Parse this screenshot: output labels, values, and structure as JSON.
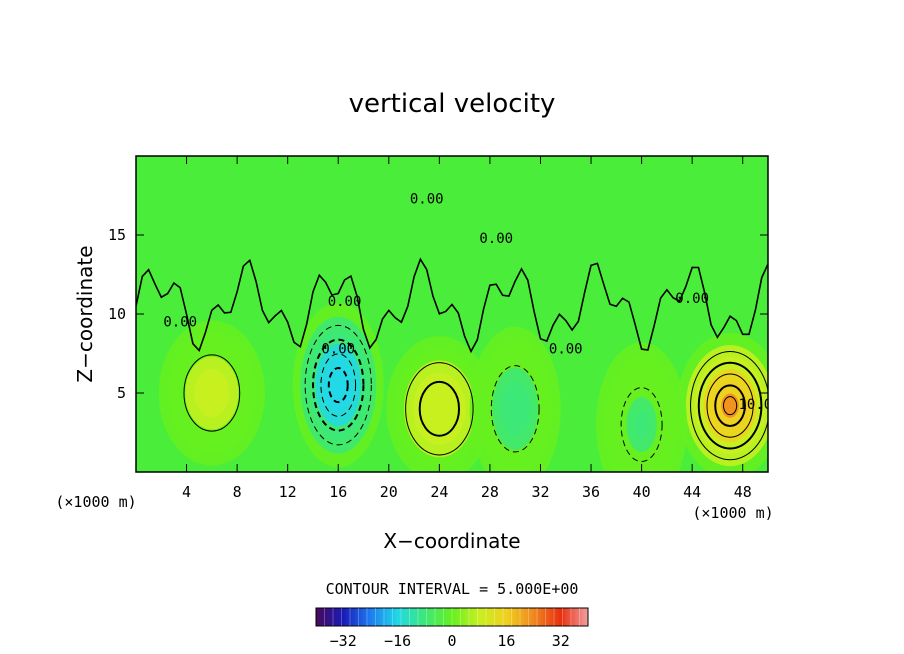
{
  "chart_data": {
    "type": "heatmap",
    "title": "vertical velocity",
    "xlabel": "X−coordinate",
    "ylabel": "Z−coordinate",
    "x_unit_label": "(×1000 m)",
    "x_unit_label_right": "(×1000 m)",
    "xlim": [
      0,
      50
    ],
    "ylim": [
      0,
      20
    ],
    "x_ticks": [
      4,
      8,
      12,
      16,
      20,
      24,
      28,
      32,
      36,
      40,
      44,
      48
    ],
    "y_ticks": [
      5,
      10,
      15
    ],
    "contour_interval_text": "CONTOUR INTERVAL = 5.000E+00",
    "contour_labels": [
      "0.00",
      "0.00",
      "0.00",
      "0.00",
      "0.00",
      "0.00",
      "0.00",
      "10.0"
    ],
    "colorbar": {
      "range": [
        -40,
        40
      ],
      "ticks": [
        -32,
        -16,
        0,
        16,
        32
      ],
      "tick_labels": [
        "−32",
        "−16",
        "0",
        "16",
        "32"
      ],
      "colors": [
        "#4a0a5a",
        "#1a1ab8",
        "#1c7cf0",
        "#22d8e8",
        "#3ce878",
        "#66f020",
        "#c8f020",
        "#f0d020",
        "#f08820",
        "#e83010",
        "#f0a0a0"
      ]
    },
    "features": [
      {
        "kind": "updraft",
        "x": 47,
        "z": 4.2,
        "peak": 25
      },
      {
        "kind": "updraft",
        "x": 24,
        "z": 4,
        "peak": 13
      },
      {
        "kind": "updraft",
        "x": 6,
        "z": 5,
        "peak": 8
      },
      {
        "kind": "downdraft",
        "x": 16,
        "z": 5.5,
        "peak": -22
      },
      {
        "kind": "downdraft",
        "x": 30,
        "z": 4,
        "peak": -8
      },
      {
        "kind": "downdraft",
        "x": 40,
        "z": 3,
        "peak": -6
      }
    ],
    "grid": false,
    "background_value": 0
  }
}
